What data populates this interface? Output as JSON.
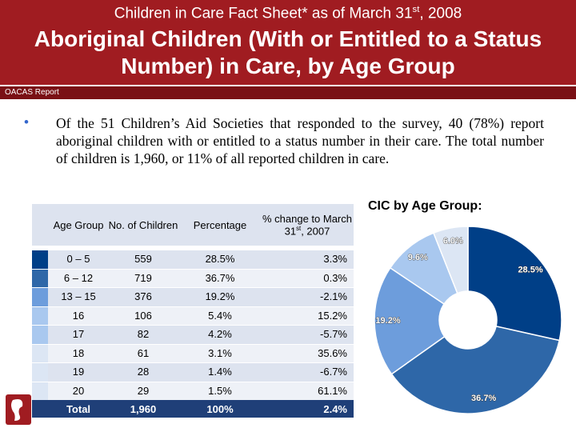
{
  "header": {
    "supertitle": {
      "before": "Children in Care Fact Sheet* as of March 31",
      "sup": "st",
      "after": ", 2008"
    },
    "title": "Aboriginal Children (With or Entitled to a Status Number) in Care, by Age Group",
    "source": "OACAS Report"
  },
  "bullet": "Of the 51 Children’s Aid Societies that responded to the survey, 40 (78%) report aboriginal children with or entitled to a status number in their care.  The total number of children is 1,960, or 11% of all reported children in care.",
  "table": {
    "columns": [
      "Age Group",
      "No. of Children",
      "Percentage",
      {
        "before": "% change to March 31",
        "sup": "st",
        "after": ", 2007"
      }
    ],
    "rows": [
      [
        "0 – 5",
        "559",
        "28.5%",
        "3.3%"
      ],
      [
        "6 – 12",
        "719",
        "36.7%",
        "0.3%"
      ],
      [
        "13 – 15",
        "376",
        "19.2%",
        "-2.1%"
      ],
      [
        "16",
        "106",
        "5.4%",
        "15.2%"
      ],
      [
        "17",
        "82",
        "4.2%",
        "-5.7%"
      ],
      [
        "18",
        "61",
        "3.1%",
        "35.6%"
      ],
      [
        "19",
        "28",
        "1.4%",
        "-6.7%"
      ],
      [
        "20",
        "29",
        "1.5%",
        "61.1%"
      ]
    ],
    "swatch_colors": [
      "#003f87",
      "#2e67a8",
      "#6d9ddc",
      "#a9c8ef",
      "#a9c8ef",
      "#dce6f4",
      "#dce6f4",
      "#dce6f4"
    ],
    "total": [
      "Total",
      "1,960",
      "100%",
      "2.4%"
    ]
  },
  "chart_data": {
    "type": "pie",
    "title": "CIC by Age Group:",
    "values": [
      28.5,
      36.7,
      19.2,
      9.6,
      6.0
    ],
    "value_labels": [
      "28.5%",
      "36.7%",
      "19.2%",
      "9.6%",
      "6.0%"
    ],
    "colors": [
      "#003f87",
      "#2e67a8",
      "#6d9ddc",
      "#a9c8ef",
      "#dce6f4"
    ]
  }
}
